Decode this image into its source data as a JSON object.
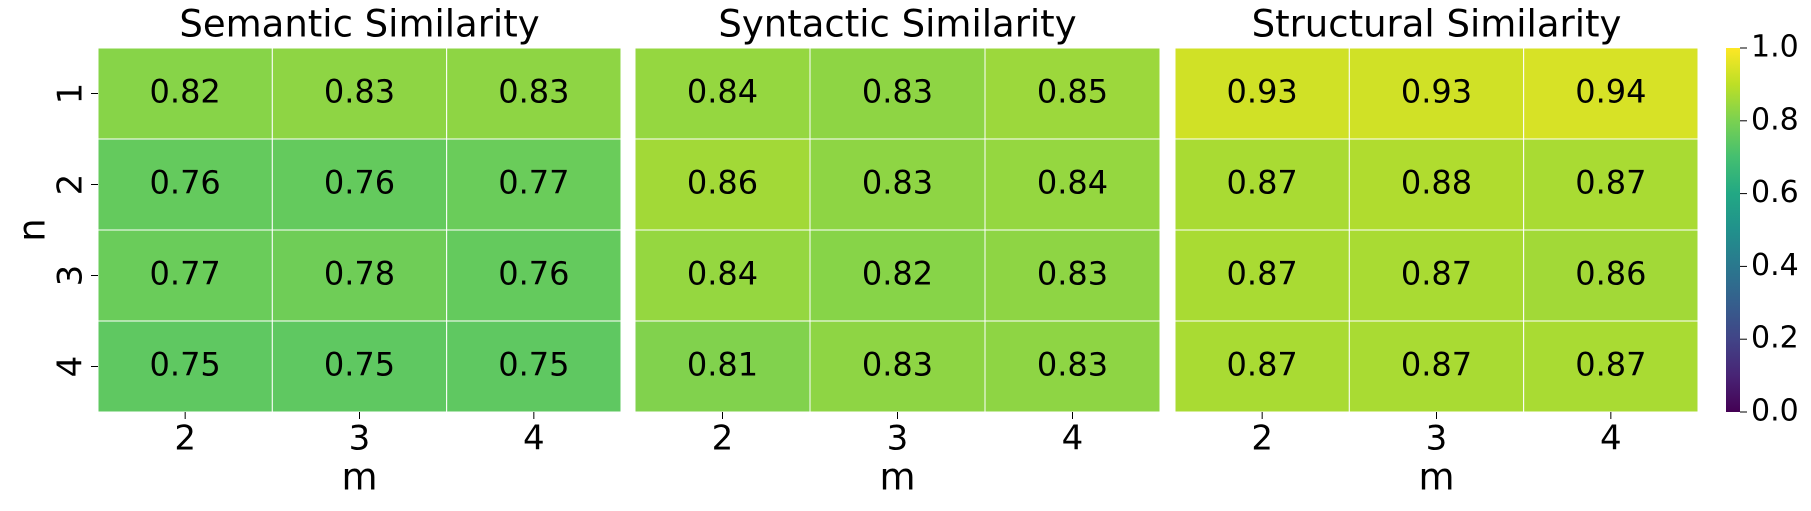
{
  "chart_data": [
    {
      "type": "heatmap",
      "title": "Semantic Similarity",
      "xlabel": "m",
      "ylabel": "n",
      "categories": [
        "2",
        "3",
        "4"
      ],
      "y_categories": [
        "1",
        "2",
        "3",
        "4"
      ],
      "values": [
        [
          0.82,
          0.83,
          0.83
        ],
        [
          0.76,
          0.76,
          0.77
        ],
        [
          0.77,
          0.78,
          0.76
        ],
        [
          0.75,
          0.75,
          0.75
        ]
      ]
    },
    {
      "type": "heatmap",
      "title": "Syntactic Similarity",
      "xlabel": "m",
      "categories": [
        "2",
        "3",
        "4"
      ],
      "values": [
        [
          0.84,
          0.83,
          0.85
        ],
        [
          0.86,
          0.83,
          0.84
        ],
        [
          0.84,
          0.82,
          0.83
        ],
        [
          0.81,
          0.83,
          0.83
        ]
      ]
    },
    {
      "type": "heatmap",
      "title": "Structural Similarity",
      "xlabel": "m",
      "categories": [
        "2",
        "3",
        "4"
      ],
      "values": [
        [
          0.93,
          0.93,
          0.94
        ],
        [
          0.87,
          0.88,
          0.87
        ],
        [
          0.87,
          0.87,
          0.86
        ],
        [
          0.87,
          0.87,
          0.87
        ]
      ]
    },
    {
      "type": "colorbar",
      "colormap": "viridis",
      "zlim": [
        0,
        1
      ],
      "zticks": [
        {
          "value": 0,
          "label": "0.0"
        },
        0.2,
        0.4,
        0.6,
        0.8,
        {
          "value": 1,
          "label": "1.0"
        }
      ]
    }
  ]
}
